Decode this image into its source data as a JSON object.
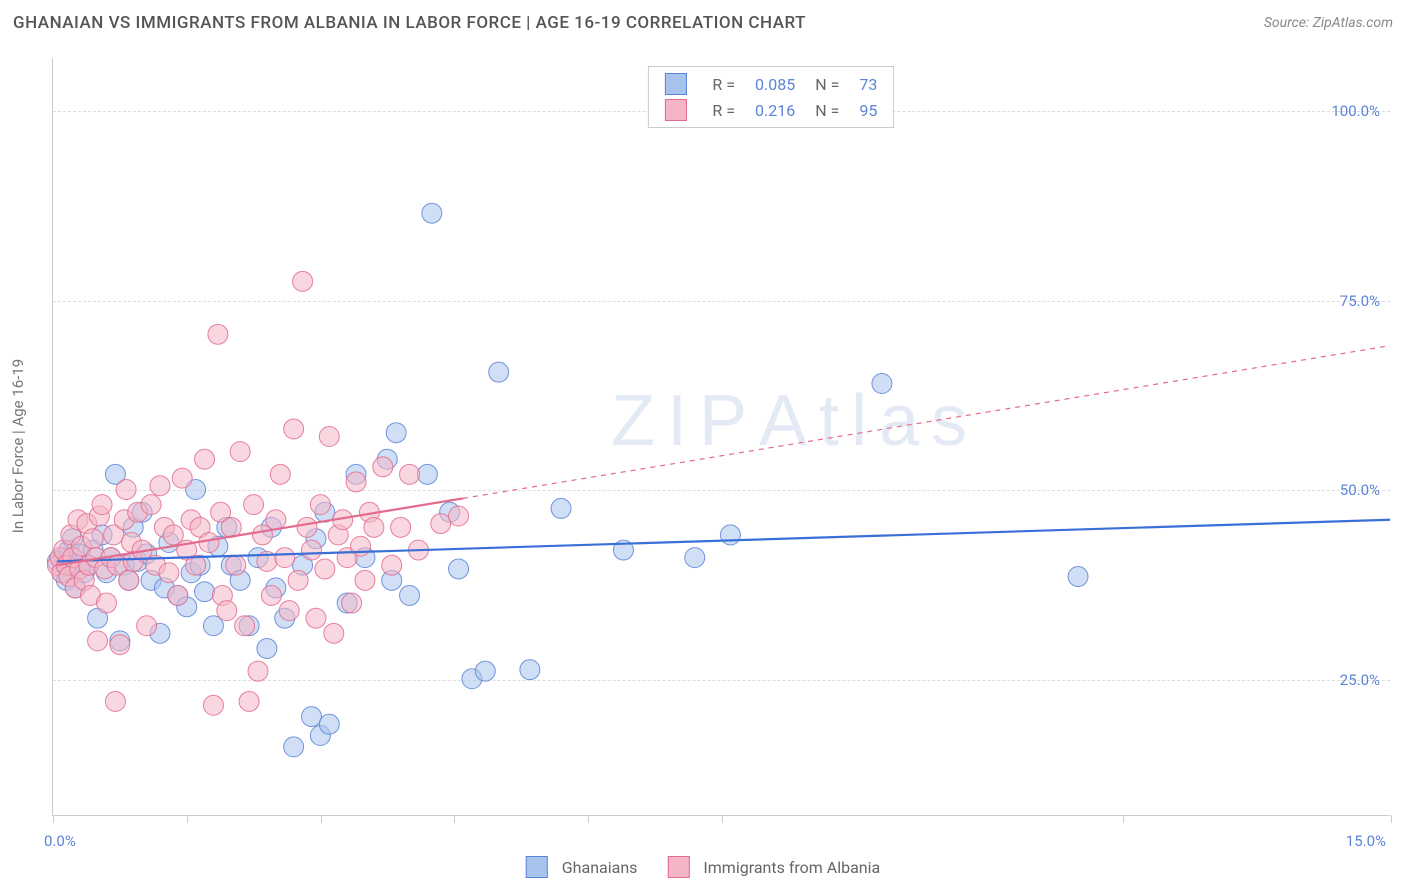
{
  "title": "GHANAIAN VS IMMIGRANTS FROM ALBANIA IN LABOR FORCE | AGE 16-19 CORRELATION CHART",
  "source_label": "Source: ZipAtlas.com",
  "y_axis_label": "In Labor Force | Age 16-19",
  "watermark_text": "ZIPAtlas",
  "watermark_top_pct": 48,
  "chart": {
    "type": "scatter",
    "xlim": [
      0,
      15
    ],
    "ylim": [
      7,
      107
    ],
    "x_ticks": [
      0,
      1.5,
      3.0,
      4.5,
      6.0,
      7.5,
      12.0,
      15.0
    ],
    "y_ticks": [
      25,
      50,
      75,
      100
    ],
    "x_tick_labels_shown": {
      "0": "0.0%",
      "15": "15.0%"
    },
    "y_tick_labels": {
      "25": "25.0%",
      "50": "50.0%",
      "75": "75.0%",
      "100": "100.0%"
    },
    "background_color": "#ffffff",
    "grid_color": "#dddddd",
    "marker_radius": 10,
    "marker_opacity": 0.55,
    "marker_stroke_opacity": 0.85,
    "line_width": 2.2,
    "dash_pattern": "5,5",
    "series": [
      {
        "name": "Ghanaians",
        "color_fill": "#a9c4ec",
        "color_stroke": "#5b84d7",
        "line_color": "#3a6fd8",
        "R": "0.085",
        "N": "73",
        "trend": {
          "x1": 0.05,
          "y1": 40.5,
          "x2": 15.0,
          "y2": 46.0
        },
        "trend_solid_until_x": 15.0,
        "points": [
          [
            0.05,
            40.5
          ],
          [
            0.1,
            39
          ],
          [
            0.12,
            41
          ],
          [
            0.15,
            38
          ],
          [
            0.18,
            42
          ],
          [
            0.2,
            40
          ],
          [
            0.22,
            43.5
          ],
          [
            0.25,
            37
          ],
          [
            0.3,
            41.5
          ],
          [
            0.35,
            39
          ],
          [
            0.4,
            40
          ],
          [
            0.45,
            42
          ],
          [
            0.5,
            33
          ],
          [
            0.55,
            44
          ],
          [
            0.6,
            39
          ],
          [
            0.65,
            41
          ],
          [
            0.7,
            52
          ],
          [
            0.75,
            30
          ],
          [
            0.8,
            40
          ],
          [
            0.85,
            38
          ],
          [
            0.9,
            45
          ],
          [
            0.95,
            40.5
          ],
          [
            1.0,
            47
          ],
          [
            1.05,
            41.5
          ],
          [
            1.1,
            38
          ],
          [
            1.2,
            31
          ],
          [
            1.25,
            37
          ],
          [
            1.3,
            43
          ],
          [
            1.4,
            36
          ],
          [
            1.5,
            34.5
          ],
          [
            1.55,
            39
          ],
          [
            1.6,
            50
          ],
          [
            1.65,
            40
          ],
          [
            1.7,
            36.5
          ],
          [
            1.8,
            32
          ],
          [
            1.85,
            42.5
          ],
          [
            1.95,
            45
          ],
          [
            2.0,
            40
          ],
          [
            2.1,
            38
          ],
          [
            2.2,
            32
          ],
          [
            2.3,
            41
          ],
          [
            2.4,
            29
          ],
          [
            2.45,
            45
          ],
          [
            2.5,
            37
          ],
          [
            2.6,
            33
          ],
          [
            2.7,
            16
          ],
          [
            2.8,
            40
          ],
          [
            2.9,
            20
          ],
          [
            2.95,
            43.5
          ],
          [
            3.0,
            17.5
          ],
          [
            3.1,
            19
          ],
          [
            3.05,
            47
          ],
          [
            3.3,
            35
          ],
          [
            3.4,
            52
          ],
          [
            3.5,
            41
          ],
          [
            3.75,
            54
          ],
          [
            3.8,
            38
          ],
          [
            3.85,
            57.5
          ],
          [
            4.0,
            36
          ],
          [
            4.2,
            52
          ],
          [
            4.25,
            86.5
          ],
          [
            4.45,
            47
          ],
          [
            4.55,
            39.5
          ],
          [
            4.7,
            25
          ],
          [
            4.85,
            26
          ],
          [
            5.0,
            65.5
          ],
          [
            5.35,
            26.2
          ],
          [
            5.7,
            47.5
          ],
          [
            6.4,
            42
          ],
          [
            7.2,
            41
          ],
          [
            7.6,
            44
          ],
          [
            9.3,
            64
          ],
          [
            11.5,
            38.5
          ]
        ]
      },
      {
        "name": "Immigrants from Albania",
        "color_fill": "#f4b6c7",
        "color_stroke": "#e36b8e",
        "line_color": "#e36b8e",
        "R": "0.216",
        "N": "95",
        "trend": {
          "x1": 0.05,
          "y1": 40.0,
          "x2": 15.0,
          "y2": 69.0
        },
        "trend_solid_until_x": 4.6,
        "points": [
          [
            0.05,
            40
          ],
          [
            0.08,
            41
          ],
          [
            0.1,
            39
          ],
          [
            0.12,
            42
          ],
          [
            0.15,
            40
          ],
          [
            0.18,
            38.5
          ],
          [
            0.2,
            44
          ],
          [
            0.22,
            41
          ],
          [
            0.25,
            37
          ],
          [
            0.28,
            46
          ],
          [
            0.3,
            39.5
          ],
          [
            0.32,
            42.5
          ],
          [
            0.35,
            38
          ],
          [
            0.38,
            45.5
          ],
          [
            0.4,
            40
          ],
          [
            0.42,
            36
          ],
          [
            0.45,
            43.5
          ],
          [
            0.48,
            41
          ],
          [
            0.5,
            30
          ],
          [
            0.52,
            46.5
          ],
          [
            0.55,
            48
          ],
          [
            0.58,
            39.5
          ],
          [
            0.6,
            35
          ],
          [
            0.65,
            41
          ],
          [
            0.68,
            44
          ],
          [
            0.7,
            22
          ],
          [
            0.72,
            40
          ],
          [
            0.75,
            29.5
          ],
          [
            0.8,
            46
          ],
          [
            0.82,
            50
          ],
          [
            0.85,
            38
          ],
          [
            0.88,
            43
          ],
          [
            0.9,
            40.5
          ],
          [
            0.95,
            47
          ],
          [
            1.0,
            42
          ],
          [
            1.05,
            32
          ],
          [
            1.1,
            48
          ],
          [
            1.15,
            40
          ],
          [
            1.2,
            50.5
          ],
          [
            1.25,
            45
          ],
          [
            1.3,
            39
          ],
          [
            1.35,
            44
          ],
          [
            1.4,
            36
          ],
          [
            1.45,
            51.5
          ],
          [
            1.5,
            42
          ],
          [
            1.55,
            46
          ],
          [
            1.6,
            40
          ],
          [
            1.65,
            45
          ],
          [
            1.7,
            54
          ],
          [
            1.75,
            43
          ],
          [
            1.8,
            21.5
          ],
          [
            1.85,
            70.5
          ],
          [
            1.88,
            47
          ],
          [
            1.9,
            36
          ],
          [
            1.95,
            34
          ],
          [
            2.0,
            45
          ],
          [
            2.05,
            40
          ],
          [
            2.1,
            55
          ],
          [
            2.15,
            32
          ],
          [
            2.2,
            22
          ],
          [
            2.25,
            48
          ],
          [
            2.3,
            26
          ],
          [
            2.35,
            44
          ],
          [
            2.4,
            40.5
          ],
          [
            2.45,
            36
          ],
          [
            2.5,
            46
          ],
          [
            2.55,
            52
          ],
          [
            2.6,
            41
          ],
          [
            2.65,
            34
          ],
          [
            2.7,
            58
          ],
          [
            2.75,
            38
          ],
          [
            2.8,
            77.5
          ],
          [
            2.85,
            45
          ],
          [
            2.9,
            42
          ],
          [
            2.95,
            33
          ],
          [
            3.0,
            48
          ],
          [
            3.05,
            39.5
          ],
          [
            3.1,
            57
          ],
          [
            3.15,
            31
          ],
          [
            3.2,
            44
          ],
          [
            3.25,
            46
          ],
          [
            3.3,
            41
          ],
          [
            3.35,
            35
          ],
          [
            3.4,
            51
          ],
          [
            3.45,
            42.5
          ],
          [
            3.5,
            38
          ],
          [
            3.55,
            47
          ],
          [
            3.6,
            45
          ],
          [
            3.7,
            53
          ],
          [
            3.8,
            40
          ],
          [
            3.9,
            45
          ],
          [
            4.0,
            52
          ],
          [
            4.1,
            42
          ],
          [
            4.35,
            45.5
          ],
          [
            4.55,
            46.5
          ]
        ]
      }
    ]
  },
  "legend_bottom": [
    {
      "label": "Ghanaians",
      "fill": "#a9c4ec",
      "stroke": "#5b84d7"
    },
    {
      "label": "Immigrants from Albania",
      "fill": "#f4b6c7",
      "stroke": "#e36b8e"
    }
  ]
}
